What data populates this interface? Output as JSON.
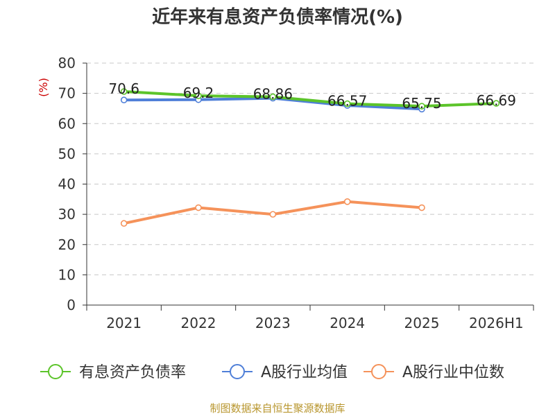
{
  "chart_data": {
    "type": "line",
    "title": "近年来有息资产负债率情况(%)",
    "ylabel": "(%)",
    "categories": [
      "2021",
      "2022",
      "2023",
      "2024",
      "2025",
      "2026H1"
    ],
    "ylim": [
      0,
      80
    ],
    "yticks": [
      0,
      10,
      20,
      30,
      40,
      50,
      60,
      70,
      80
    ],
    "grid": true,
    "legend_position": "bottom",
    "series": [
      {
        "name": "有息资产负债率",
        "color": "#5cc42a",
        "values": [
          70.6,
          69.2,
          68.86,
          66.57,
          65.75,
          66.69
        ],
        "labels": [
          "70.6",
          "69.2",
          "68.86",
          "66.57",
          "65.75",
          "66.69"
        ]
      },
      {
        "name": "A股行业均值",
        "color": "#4f7fd8",
        "values": [
          67.8,
          67.9,
          68.4,
          66.0,
          64.8,
          null
        ]
      },
      {
        "name": "A股行业中位数",
        "color": "#f5925a",
        "values": [
          27.0,
          32.2,
          30.0,
          34.2,
          32.2,
          null
        ]
      }
    ]
  },
  "source": "制图数据来自恒生聚源数据库"
}
